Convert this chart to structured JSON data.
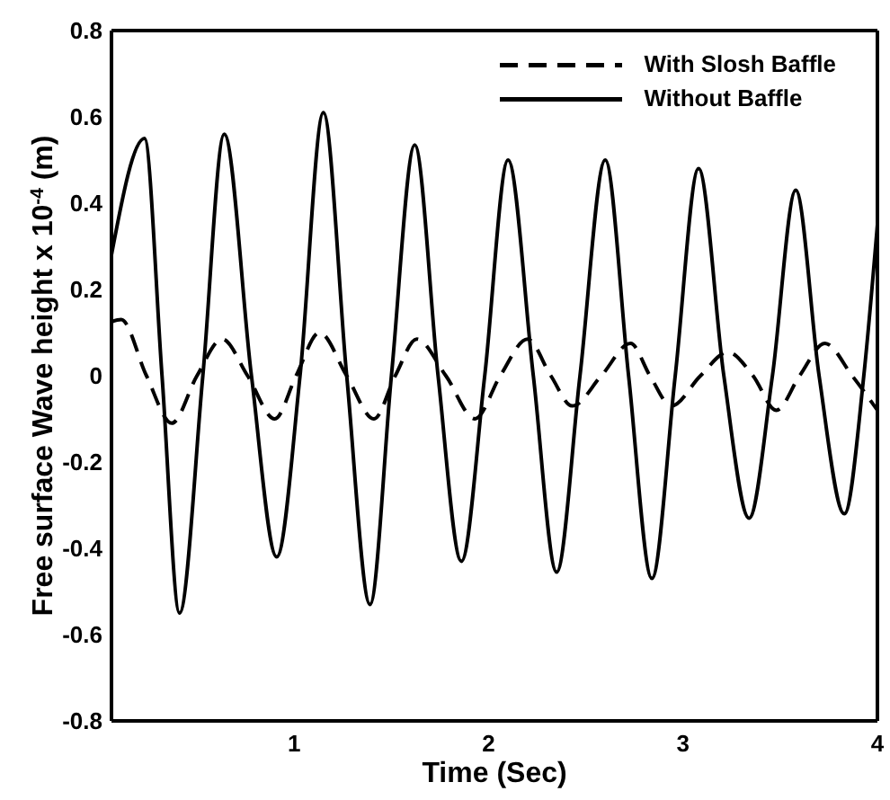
{
  "chart_data": {
    "type": "line",
    "xlabel": "Time (Sec)",
    "ylabel": "Free surface Wave height x 10$^{-4}$  (m)",
    "xlim": [
      0.06,
      4
    ],
    "xticks": [
      1,
      2,
      3,
      4
    ],
    "ylim": [
      -0.8,
      0.8
    ],
    "yticks": [
      -0.8,
      -0.6,
      -0.4,
      -0.2,
      0,
      0.2,
      0.4,
      0.6,
      0.8
    ],
    "grid": false,
    "legend": "top right",
    "marker": "none",
    "series": [
      {
        "name": "With Slosh Baffle",
        "color": "#000000",
        "line_style": "dashed",
        "x": [
          0.06,
          0.11,
          0.24,
          0.37,
          0.5,
          0.63,
          0.76,
          0.9,
          1.01,
          1.13,
          1.27,
          1.41,
          1.52,
          1.63,
          1.78,
          1.93,
          2.06,
          2.2,
          2.32,
          2.43,
          2.58,
          2.73,
          2.83,
          2.94,
          3.09,
          3.23,
          3.36,
          3.48,
          3.6,
          3.73,
          3.87,
          4.0
        ],
        "values": [
          0.125,
          0.13,
          0,
          -0.11,
          0,
          0.085,
          0,
          -0.1,
          0,
          0.1,
          0,
          -0.1,
          0,
          0.085,
          0,
          -0.1,
          0,
          0.085,
          0,
          -0.07,
          0,
          0.075,
          0,
          -0.07,
          0,
          0.055,
          0,
          -0.08,
          0,
          0.075,
          0,
          -0.08
        ]
      },
      {
        "name": "Without Baffle",
        "color": "#000000",
        "line_style": "solid",
        "x": [
          0.06,
          0.23,
          0.32,
          0.41,
          0.53,
          0.64,
          0.78,
          0.91,
          1.03,
          1.15,
          1.27,
          1.39,
          1.5,
          1.62,
          1.74,
          1.86,
          1.98,
          2.1,
          2.23,
          2.35,
          2.47,
          2.6,
          2.72,
          2.84,
          2.96,
          3.08,
          3.21,
          3.34,
          3.46,
          3.58,
          3.7,
          3.83,
          3.93,
          4.0
        ],
        "values": [
          0.28,
          0.55,
          0,
          -0.55,
          0,
          0.56,
          0,
          -0.42,
          0,
          0.61,
          0,
          -0.53,
          0,
          0.535,
          0,
          -0.43,
          0,
          0.5,
          0,
          -0.455,
          0,
          0.5,
          0,
          -0.47,
          0,
          0.48,
          0,
          -0.33,
          0,
          0.43,
          0,
          -0.32,
          0,
          0.35
        ]
      }
    ]
  }
}
